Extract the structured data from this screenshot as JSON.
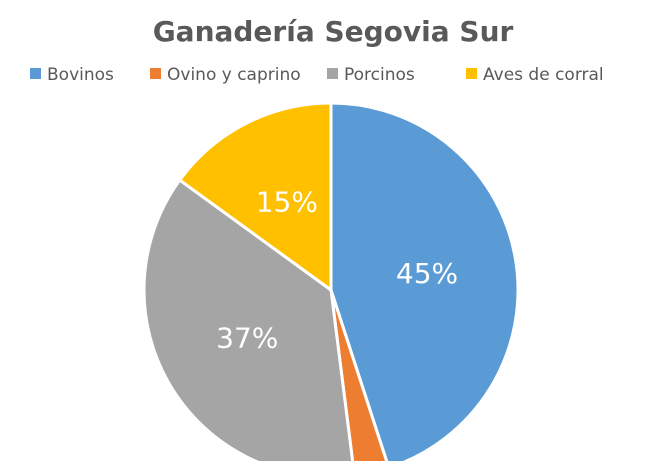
{
  "chart_data": {
    "type": "pie",
    "title": "Ganadería Segovia Sur",
    "categories": [
      "Bovinos",
      "Ovino y caprino",
      "Porcinos",
      "Aves de corral"
    ],
    "values": [
      45,
      3,
      37,
      15
    ],
    "value_labels": [
      "45%",
      null,
      "37%",
      "15%"
    ],
    "colors": [
      "#5b9bd5",
      "#ed7d31",
      "#a5a5a5",
      "#ffc000"
    ],
    "legend": "top"
  }
}
